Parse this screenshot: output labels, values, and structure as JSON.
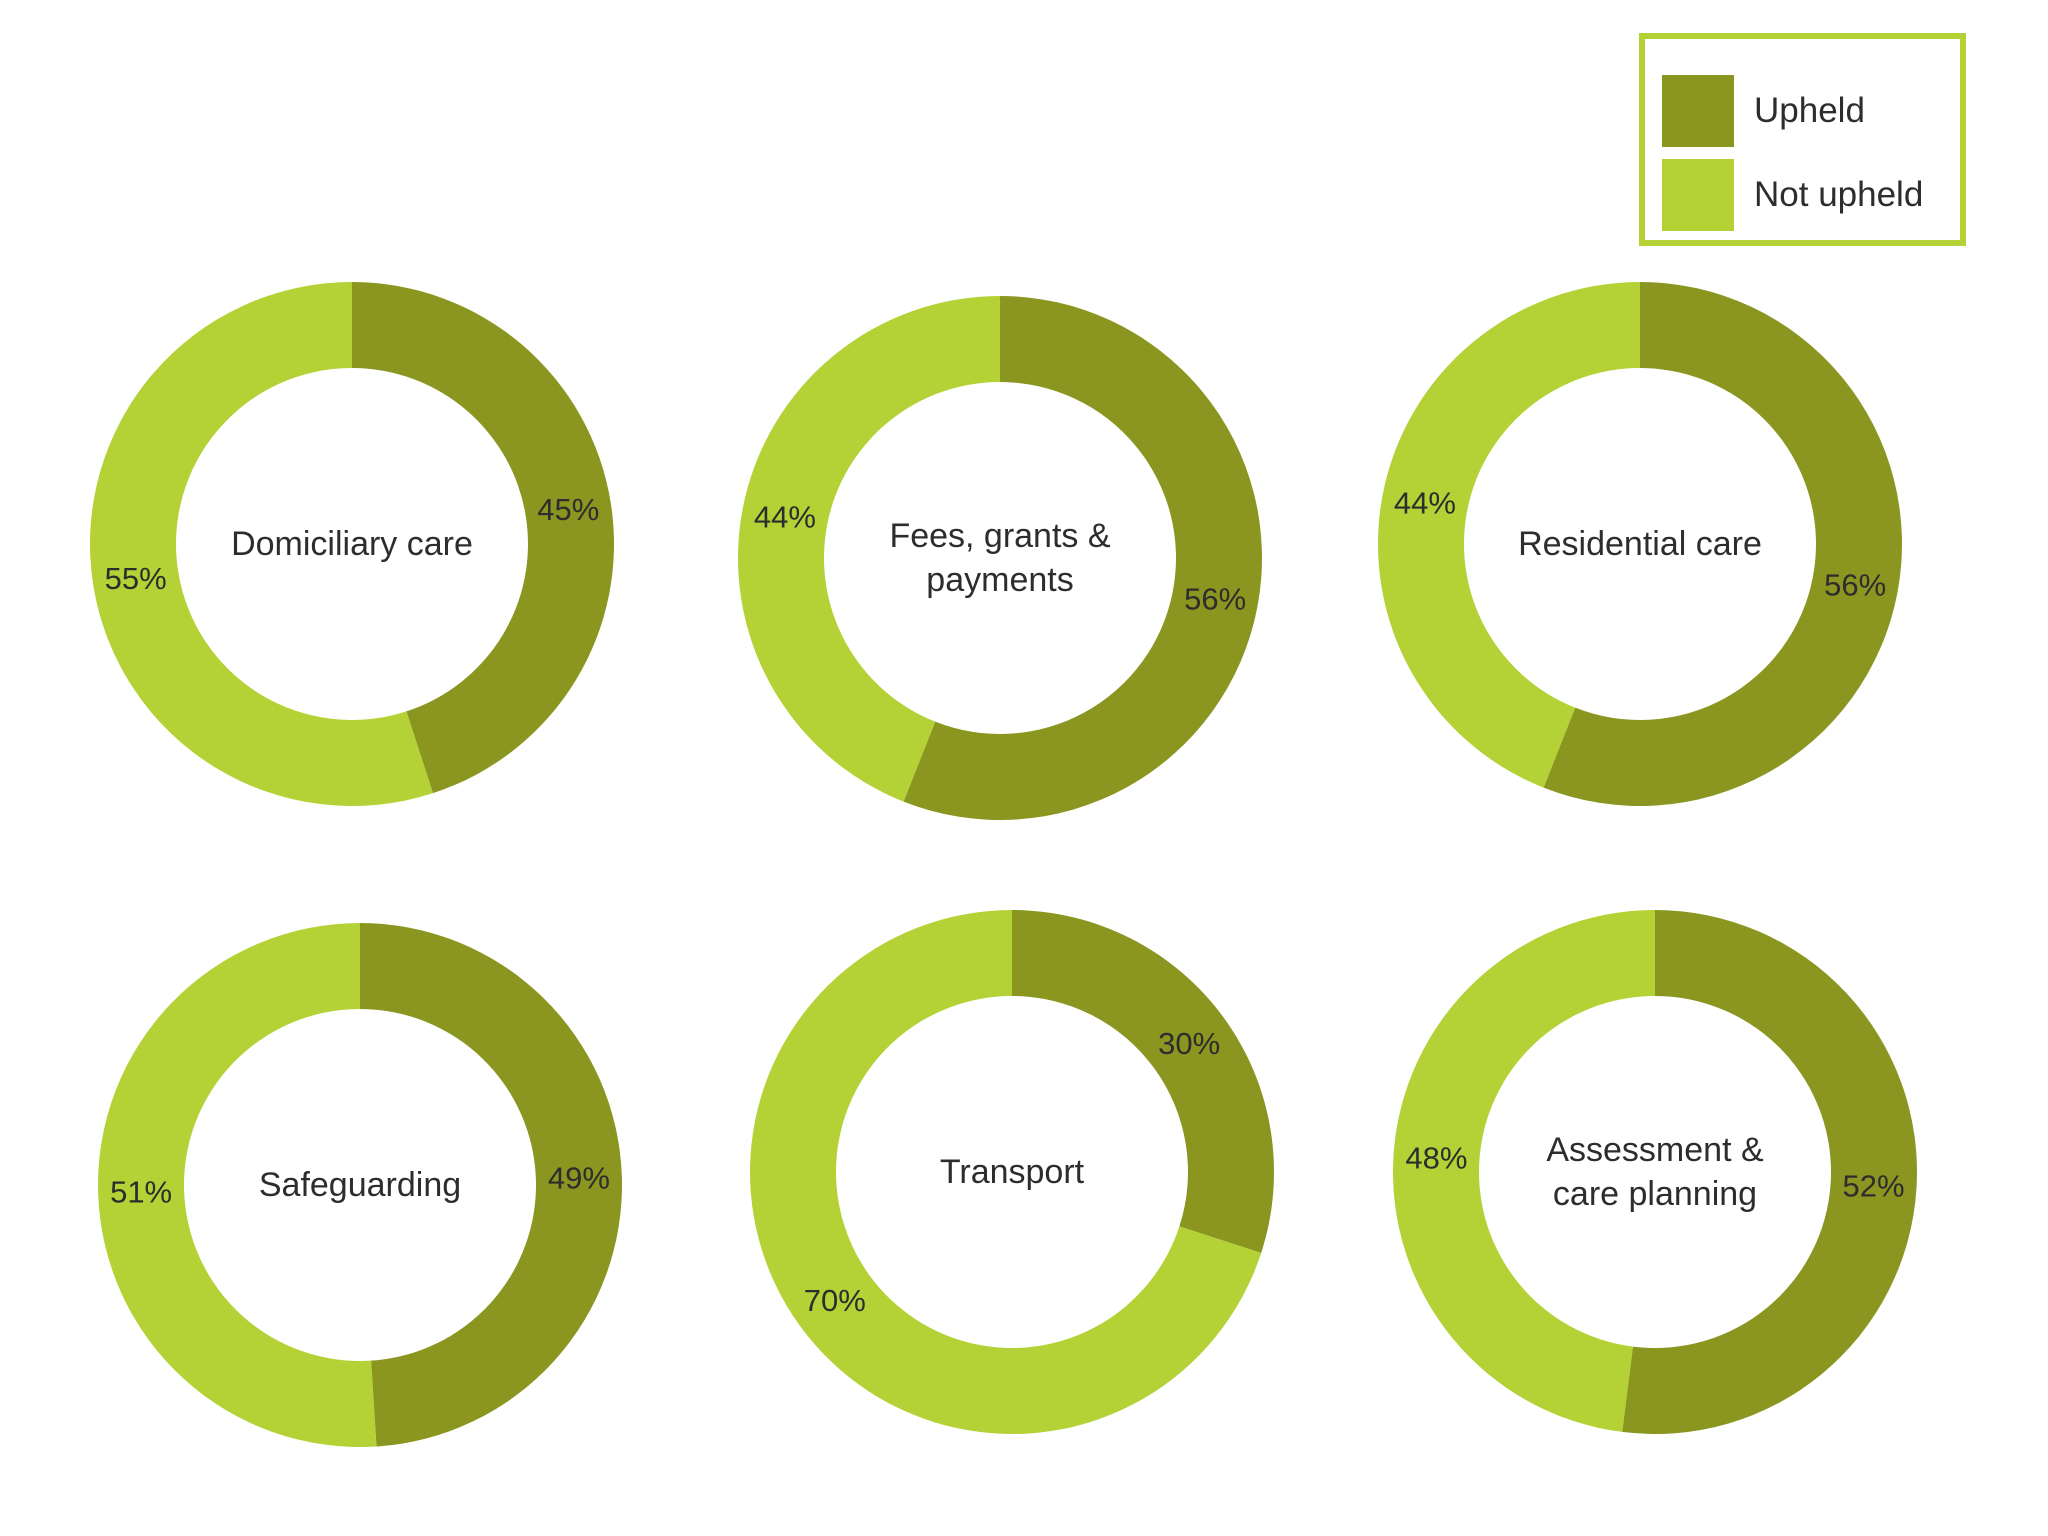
{
  "colors": {
    "upheld": "#8a9620",
    "not_upheld": "#b4d236",
    "legend_border": "#b4d236",
    "text": "#2d2d2d"
  },
  "legend": [
    {
      "label": "Upheld",
      "color": "#8a9620"
    },
    {
      "label": "Not upheld",
      "color": "#b4d236"
    }
  ],
  "chart_data": [
    {
      "type": "pie",
      "title": "Domiciliary care",
      "title_lines": [
        "Domiciliary care"
      ],
      "series": [
        {
          "name": "Upheld",
          "value": 45,
          "label": "45%"
        },
        {
          "name": "Not upheld",
          "value": 55,
          "label": "55%"
        }
      ]
    },
    {
      "type": "pie",
      "title": "Fees, grants & payments",
      "title_lines": [
        "Fees, grants &",
        "payments"
      ],
      "series": [
        {
          "name": "Upheld",
          "value": 56,
          "label": "56%"
        },
        {
          "name": "Not upheld",
          "value": 44,
          "label": "44%"
        }
      ]
    },
    {
      "type": "pie",
      "title": "Residential care",
      "title_lines": [
        "Residential care"
      ],
      "series": [
        {
          "name": "Upheld",
          "value": 56,
          "label": "56%"
        },
        {
          "name": "Not upheld",
          "value": 44,
          "label": "44%"
        }
      ]
    },
    {
      "type": "pie",
      "title": "Safeguarding",
      "title_lines": [
        "Safeguarding"
      ],
      "series": [
        {
          "name": "Upheld",
          "value": 49,
          "label": "49%"
        },
        {
          "name": "Not upheld",
          "value": 51,
          "label": "51%"
        }
      ]
    },
    {
      "type": "pie",
      "title": "Transport",
      "title_lines": [
        "Transport"
      ],
      "series": [
        {
          "name": "Upheld",
          "value": 30,
          "label": "30%"
        },
        {
          "name": "Not upheld",
          "value": 70,
          "label": "70%"
        }
      ]
    },
    {
      "type": "pie",
      "title": "Assessment & care planning",
      "title_lines": [
        "Assessment &",
        "care planning"
      ],
      "series": [
        {
          "name": "Upheld",
          "value": 52,
          "label": "52%"
        },
        {
          "name": "Not upheld",
          "value": 48,
          "label": "48%"
        }
      ]
    }
  ]
}
